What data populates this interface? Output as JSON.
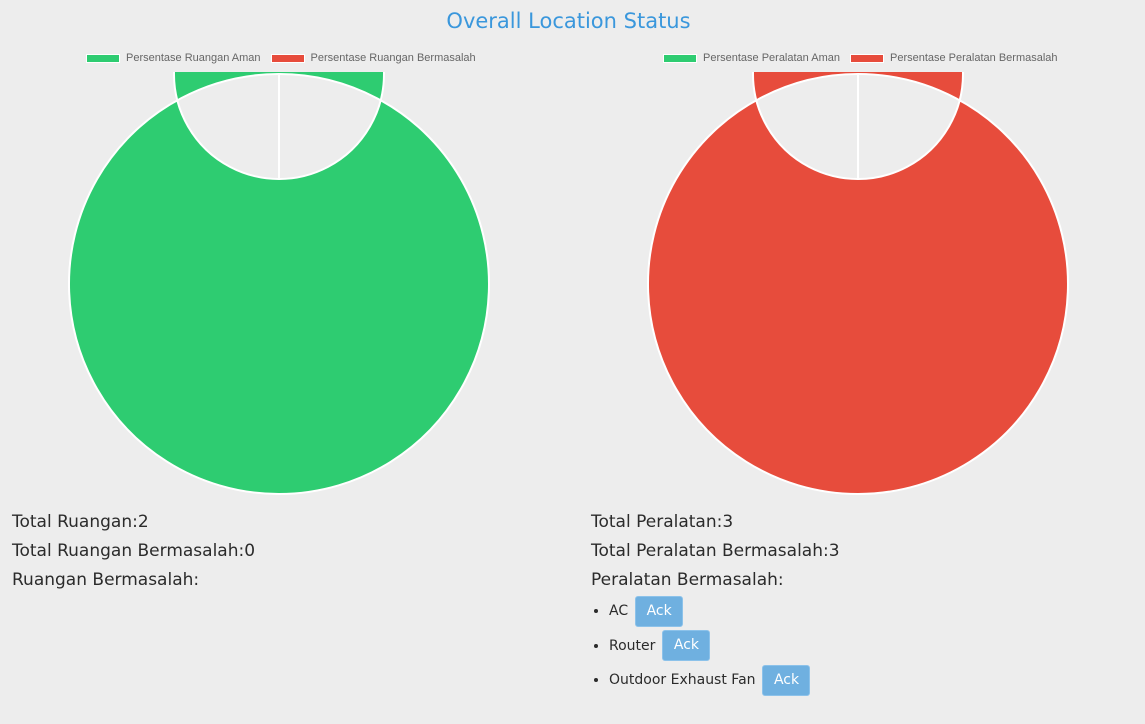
{
  "page": {
    "title": "Overall Location Status"
  },
  "colors": {
    "safe": "#2ecc71",
    "problem": "#e74c3c",
    "title": "#3a97dc",
    "button": "#6fb0e0"
  },
  "rooms": {
    "stats": {
      "total_label": "Total Ruangan:",
      "total_value": "2",
      "problem_label": "Total Ruangan Bermasalah:",
      "problem_value": "0",
      "list_label": "Ruangan Bermasalah:"
    },
    "items": []
  },
  "equipment": {
    "stats": {
      "total_label": "Total Peralatan:",
      "total_value": "3",
      "problem_label": "Total Peralatan Bermasalah:",
      "problem_value": "3",
      "list_label": "Peralatan Bermasalah:"
    },
    "items": [
      {
        "name": "AC",
        "action": "Ack"
      },
      {
        "name": "Router",
        "action": "Ack"
      },
      {
        "name": "Outdoor Exhaust Fan",
        "action": "Ack"
      }
    ]
  },
  "chart_data": [
    {
      "type": "pie",
      "variant": "doughnut",
      "categories": [
        "Persentase Ruangan Aman",
        "Persentase Ruangan Bermasalah"
      ],
      "values": [
        100,
        0
      ],
      "colors": [
        "#2ecc71",
        "#e74c3c"
      ],
      "legend": "top"
    },
    {
      "type": "pie",
      "variant": "doughnut",
      "categories": [
        "Persentase Peralatan Aman",
        "Persentase Peralatan Bermasalah"
      ],
      "values": [
        0,
        100
      ],
      "colors": [
        "#2ecc71",
        "#e74c3c"
      ],
      "legend": "top"
    }
  ]
}
